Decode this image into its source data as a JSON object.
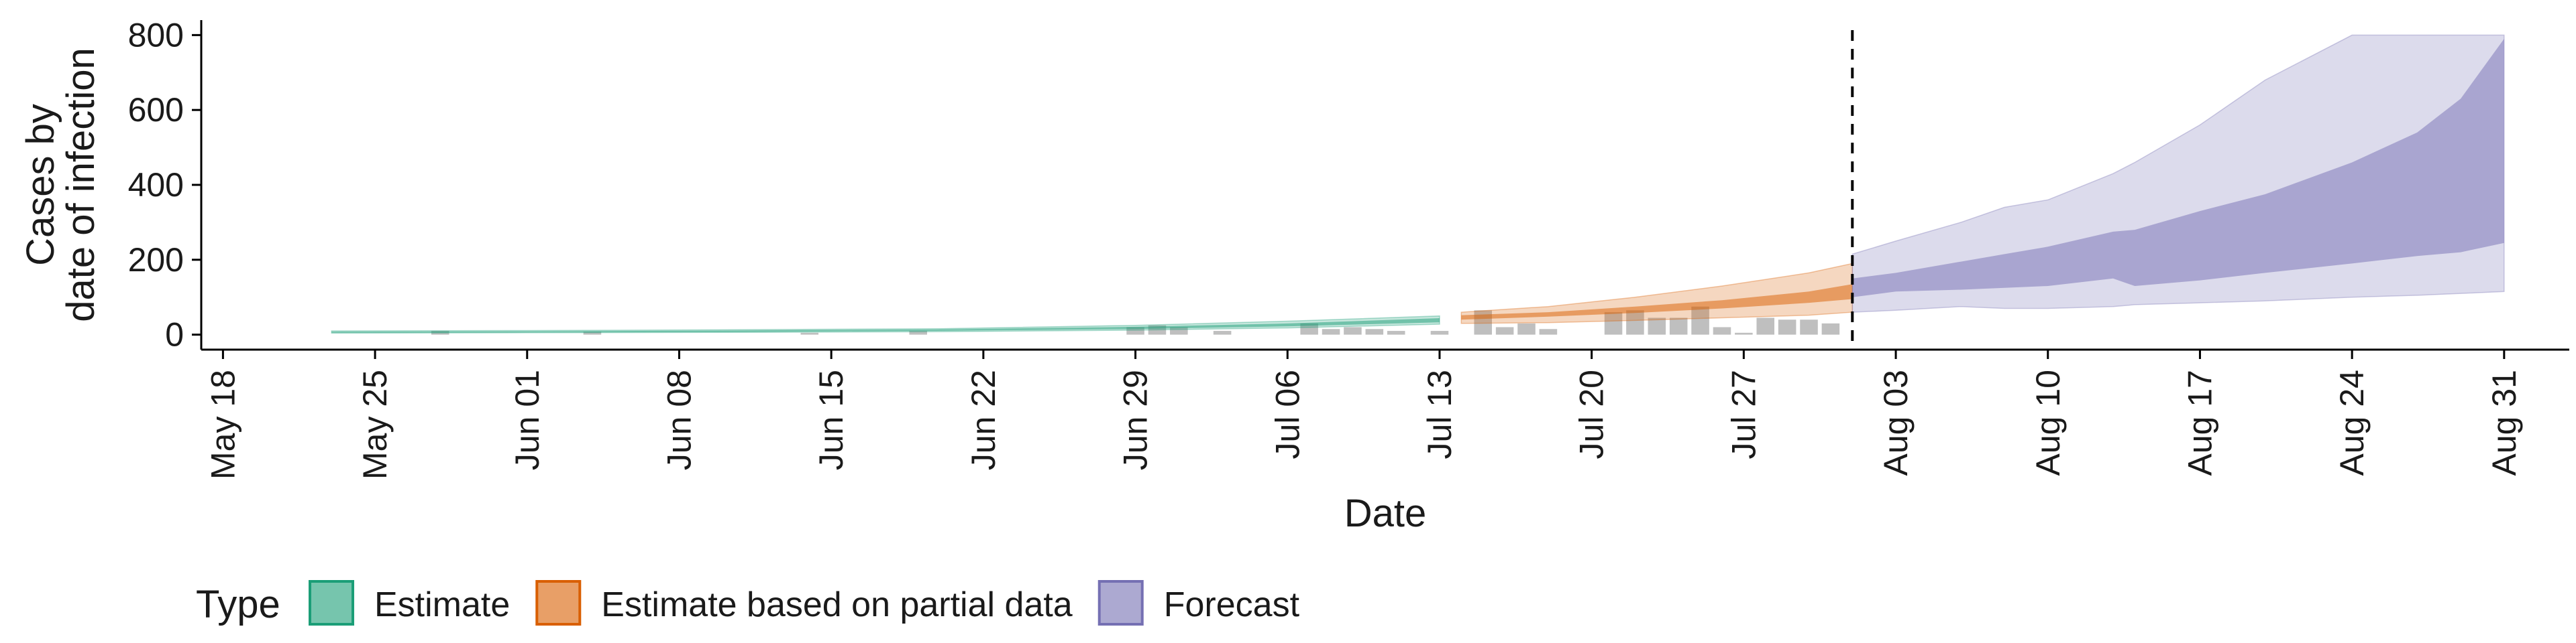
{
  "chart_data": {
    "type": "area",
    "title": "",
    "xlabel": "Date",
    "ylabel_lines": [
      "Cases by",
      "date of infection"
    ],
    "xlim": [
      "2020-05-17",
      "2020-09-03"
    ],
    "ylim": [
      -40,
      840
    ],
    "yticks": [
      0,
      200,
      400,
      600,
      800
    ],
    "xticks": [
      {
        "date": "2020-05-18",
        "label": "May 18"
      },
      {
        "date": "2020-05-25",
        "label": "May 25"
      },
      {
        "date": "2020-06-01",
        "label": "Jun 01"
      },
      {
        "date": "2020-06-08",
        "label": "Jun 08"
      },
      {
        "date": "2020-06-15",
        "label": "Jun 15"
      },
      {
        "date": "2020-06-22",
        "label": "Jun 22"
      },
      {
        "date": "2020-06-29",
        "label": "Jun 29"
      },
      {
        "date": "2020-07-06",
        "label": "Jul 06"
      },
      {
        "date": "2020-07-13",
        "label": "Jul 13"
      },
      {
        "date": "2020-07-20",
        "label": "Jul 20"
      },
      {
        "date": "2020-07-27",
        "label": "Jul 27"
      },
      {
        "date": "2020-08-03",
        "label": "Aug 03"
      },
      {
        "date": "2020-08-10",
        "label": "Aug 10"
      },
      {
        "date": "2020-08-17",
        "label": "Aug 17"
      },
      {
        "date": "2020-08-24",
        "label": "Aug 24"
      },
      {
        "date": "2020-08-31",
        "label": "Aug 31"
      }
    ],
    "forecast_date": "2020-08-01",
    "grid": false,
    "legend": {
      "title": "Type",
      "position": "bottom-left",
      "entries": [
        {
          "label": "Estimate",
          "color": "#1b9e77"
        },
        {
          "label": "Estimate based on partial data",
          "color": "#d95f02"
        },
        {
          "label": "Forecast",
          "color": "#7570b3"
        }
      ]
    },
    "reported_cases": {
      "color": "#bfbfbf",
      "x": [
        "2020-05-28",
        "2020-06-04",
        "2020-06-14",
        "2020-06-19",
        "2020-06-29",
        "2020-06-30",
        "2020-07-01",
        "2020-07-03",
        "2020-07-07",
        "2020-07-08",
        "2020-07-09",
        "2020-07-10",
        "2020-07-11",
        "2020-07-13",
        "2020-07-15",
        "2020-07-16",
        "2020-07-17",
        "2020-07-18",
        "2020-07-21",
        "2020-07-22",
        "2020-07-23",
        "2020-07-24",
        "2020-07-25",
        "2020-07-26",
        "2020-07-27",
        "2020-07-28",
        "2020-07-29",
        "2020-07-30",
        "2020-07-31"
      ],
      "values": [
        10,
        8,
        5,
        10,
        20,
        25,
        20,
        10,
        30,
        15,
        20,
        15,
        10,
        10,
        65,
        20,
        30,
        15,
        60,
        65,
        45,
        45,
        75,
        20,
        5,
        45,
        40,
        40,
        30
      ]
    },
    "series": [
      {
        "name": "Estimate",
        "color": "#1b9e77",
        "x": [
          "2020-05-23",
          "2020-06-01",
          "2020-06-10",
          "2020-06-20",
          "2020-06-29",
          "2020-07-06",
          "2020-07-13"
        ],
        "outer_lower": [
          4,
          5,
          6,
          8,
          12,
          18,
          28
        ],
        "outer_upper": [
          10,
          11,
          13,
          16,
          25,
          36,
          50
        ],
        "inner_lower": [
          5,
          6,
          7,
          10,
          15,
          22,
          33
        ],
        "inner_upper": [
          8,
          9,
          11,
          14,
          21,
          30,
          44
        ]
      },
      {
        "name": "Estimate based on partial data",
        "color": "#d95f02",
        "x": [
          "2020-07-14",
          "2020-07-18",
          "2020-07-22",
          "2020-07-26",
          "2020-07-30",
          "2020-08-01"
        ],
        "outer_lower": [
          30,
          32,
          38,
          45,
          52,
          60
        ],
        "outer_upper": [
          60,
          75,
          100,
          130,
          165,
          190
        ],
        "inner_lower": [
          40,
          48,
          58,
          70,
          85,
          95
        ],
        "inner_upper": [
          52,
          60,
          75,
          92,
          115,
          135
        ]
      },
      {
        "name": "Forecast",
        "color": "#7570b3",
        "x": [
          "2020-08-01",
          "2020-08-03",
          "2020-08-06",
          "2020-08-08",
          "2020-08-10",
          "2020-08-13",
          "2020-08-14",
          "2020-08-17",
          "2020-08-20",
          "2020-08-24",
          "2020-08-27",
          "2020-08-29",
          "2020-08-31"
        ],
        "outer_lower": [
          60,
          65,
          75,
          70,
          70,
          75,
          80,
          85,
          90,
          100,
          105,
          110,
          115
        ],
        "outer_upper": [
          215,
          250,
          300,
          340,
          360,
          430,
          460,
          560,
          680,
          800,
          800,
          800,
          800
        ],
        "inner_lower": [
          100,
          115,
          120,
          125,
          130,
          150,
          130,
          145,
          165,
          190,
          210,
          220,
          245
        ],
        "inner_upper": [
          150,
          165,
          195,
          215,
          235,
          275,
          280,
          330,
          375,
          460,
          540,
          630,
          790
        ]
      }
    ]
  }
}
